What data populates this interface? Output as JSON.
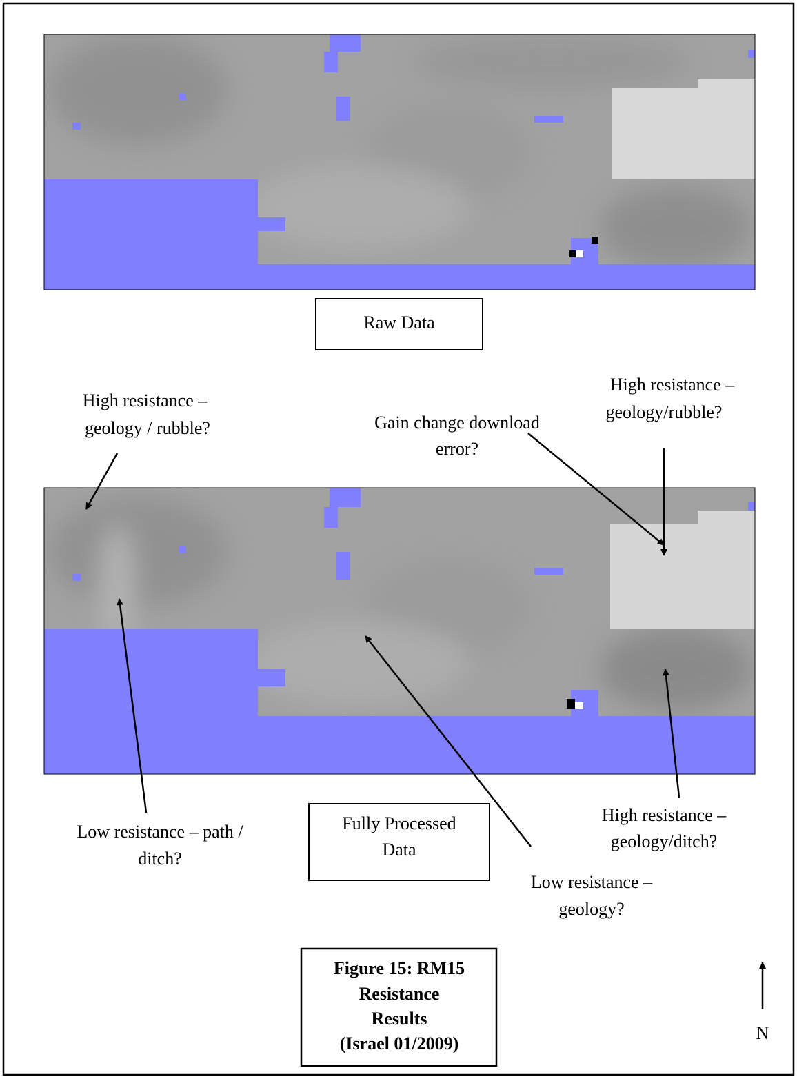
{
  "raw_panel": {
    "label": "Raw Data"
  },
  "annotations": [
    {
      "lines": [
        "High resistance –",
        "geology / rubble?"
      ]
    },
    {
      "lines": [
        "Gain change download",
        "error?"
      ]
    },
    {
      "lines": [
        "High resistance –",
        "geology/rubble?"
      ]
    },
    {
      "lines": [
        "Low resistance – path /",
        "ditch?"
      ]
    },
    {
      "lines": [
        "High resistance –",
        "geology/ditch?"
      ]
    },
    {
      "lines": [
        "Low resistance –",
        "geology?"
      ]
    }
  ],
  "processed_panel": {
    "lines": [
      "Fully Processed",
      "Data"
    ]
  },
  "caption": {
    "lines": [
      "Figure 15: RM15",
      "Resistance",
      "Results",
      "(Israel 01/2009)"
    ]
  },
  "north": "N"
}
